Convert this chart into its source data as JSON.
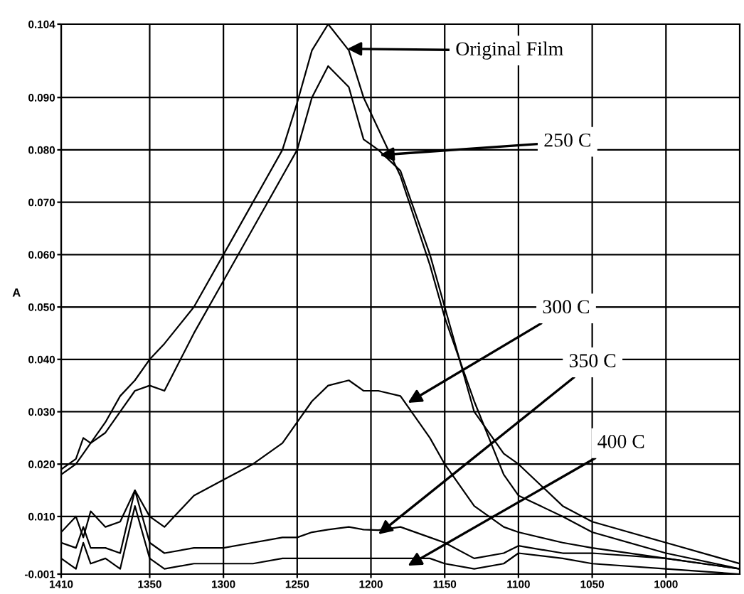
{
  "chart_data": {
    "type": "line",
    "ylabel": "A",
    "x": [
      1410,
      1400,
      1395,
      1390,
      1380,
      1370,
      1360,
      1350,
      1340,
      1320,
      1300,
      1280,
      1260,
      1250,
      1240,
      1229,
      1215,
      1205,
      1195,
      1180,
      1160,
      1150,
      1130,
      1110,
      1100,
      1070,
      1050,
      1000,
      950
    ],
    "series": [
      {
        "color": "#000000",
        "values": [
          0.019,
          0.021,
          0.025,
          0.024,
          0.028,
          0.033,
          0.036,
          0.04,
          0.043,
          0.05,
          0.06,
          0.07,
          0.08,
          0.089,
          0.099,
          0.104,
          0.099,
          0.09,
          0.084,
          0.075,
          0.058,
          0.048,
          0.032,
          0.018,
          0.014,
          0.01,
          0.007,
          0.003,
          0.0
        ]
      },
      {
        "color": "#000000",
        "values": [
          0.018,
          0.02,
          0.022,
          0.024,
          0.026,
          0.03,
          0.034,
          0.035,
          0.034,
          0.045,
          0.055,
          0.065,
          0.075,
          0.08,
          0.09,
          0.096,
          0.092,
          0.082,
          0.08,
          0.076,
          0.06,
          0.05,
          0.03,
          0.022,
          0.02,
          0.012,
          0.009,
          0.005,
          0.001
        ]
      },
      {
        "color": "#000000",
        "values": [
          0.007,
          0.01,
          0.006,
          0.011,
          0.008,
          0.009,
          0.015,
          0.01,
          0.008,
          0.014,
          0.017,
          0.02,
          0.024,
          0.028,
          0.032,
          0.035,
          0.036,
          0.034,
          0.034,
          0.033,
          0.025,
          0.02,
          0.012,
          0.008,
          0.007,
          0.005,
          0.004,
          0.002,
          0.0
        ]
      },
      {
        "color": "#000000",
        "values": [
          0.005,
          0.004,
          0.008,
          0.004,
          0.004,
          0.003,
          0.015,
          0.005,
          0.003,
          0.004,
          0.004,
          0.005,
          0.006,
          0.006,
          0.007,
          0.0075,
          0.008,
          0.0075,
          0.0074,
          0.008,
          0.006,
          0.005,
          0.002,
          0.003,
          0.0044,
          0.003,
          0.003,
          0.002,
          0.0
        ]
      },
      {
        "color": "#000000",
        "values": [
          0.002,
          0.0,
          0.005,
          0.001,
          0.002,
          0.0,
          0.012,
          0.002,
          0.0,
          0.001,
          0.001,
          0.001,
          0.002,
          0.002,
          0.002,
          0.002,
          0.002,
          0.002,
          0.002,
          0.002,
          0.002,
          0.001,
          0.0,
          0.001,
          0.003,
          0.002,
          0.001,
          0.0,
          -0.001
        ]
      }
    ],
    "xlim": [
      1410,
      950
    ],
    "xticks": [
      1410,
      1350,
      1300,
      1250,
      1200,
      1150,
      1100,
      1050,
      1000
    ],
    "ylim": [
      -0.001,
      0.104
    ],
    "yticks": [
      {
        "value": -0.001,
        "label": "-0.001"
      },
      {
        "value": 0.01,
        "label": "0.010"
      },
      {
        "value": 0.02,
        "label": "0.020"
      },
      {
        "value": 0.03,
        "label": "0.030"
      },
      {
        "value": 0.04,
        "label": "0.040"
      },
      {
        "value": 0.05,
        "label": "0.050"
      },
      {
        "value": 0.06,
        "label": "0.060"
      },
      {
        "value": 0.07,
        "label": "0.070"
      },
      {
        "value": 0.08,
        "label": "0.080"
      },
      {
        "value": 0.09,
        "label": "0.090"
      },
      {
        "value": 0.104,
        "label": "0.104"
      }
    ],
    "grid": true,
    "annotations": [
      {
        "text": "Original Film",
        "x": 1216,
        "y": 0.0993
      },
      {
        "text": "250 C",
        "x": 1194,
        "y": 0.079
      },
      {
        "text": "300 C",
        "x": 1175,
        "y": 0.0317
      },
      {
        "text": "350 C",
        "x": 1195,
        "y": 0.0066
      },
      {
        "text": "400 C",
        "x": 1175,
        "y": 0.0006
      }
    ]
  }
}
